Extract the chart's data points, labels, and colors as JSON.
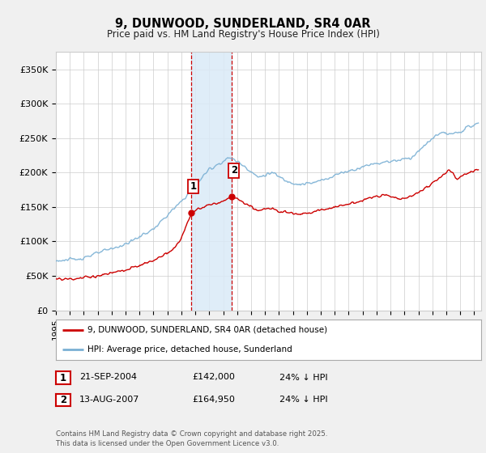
{
  "title": "9, DUNWOOD, SUNDERLAND, SR4 0AR",
  "subtitle": "Price paid vs. HM Land Registry's House Price Index (HPI)",
  "ylabel_ticks": [
    "£0",
    "£50K",
    "£100K",
    "£150K",
    "£200K",
    "£250K",
    "£300K",
    "£350K"
  ],
  "ytick_values": [
    0,
    50000,
    100000,
    150000,
    200000,
    250000,
    300000,
    350000
  ],
  "ylim": [
    0,
    375000
  ],
  "xlim_start": 1995.0,
  "xlim_end": 2025.5,
  "purchase1_date": 2004.72,
  "purchase1_price": 142000,
  "purchase2_date": 2007.62,
  "purchase2_price": 164950,
  "shade_color": "#daeaf7",
  "vline_color": "#cc0000",
  "house_line_color": "#cc0000",
  "hpi_line_color": "#7ab0d4",
  "legend_house": "9, DUNWOOD, SUNDERLAND, SR4 0AR (detached house)",
  "legend_hpi": "HPI: Average price, detached house, Sunderland",
  "purchase_table": [
    {
      "num": "1",
      "date": "21-SEP-2004",
      "price": "£142,000",
      "hpi": "24% ↓ HPI"
    },
    {
      "num": "2",
      "date": "13-AUG-2007",
      "price": "£164,950",
      "hpi": "24% ↓ HPI"
    }
  ],
  "footer": "Contains HM Land Registry data © Crown copyright and database right 2025.\nThis data is licensed under the Open Government Licence v3.0.",
  "background_color": "#f0f0f0",
  "plot_bg_color": "#ffffff",
  "grid_color": "#cccccc"
}
